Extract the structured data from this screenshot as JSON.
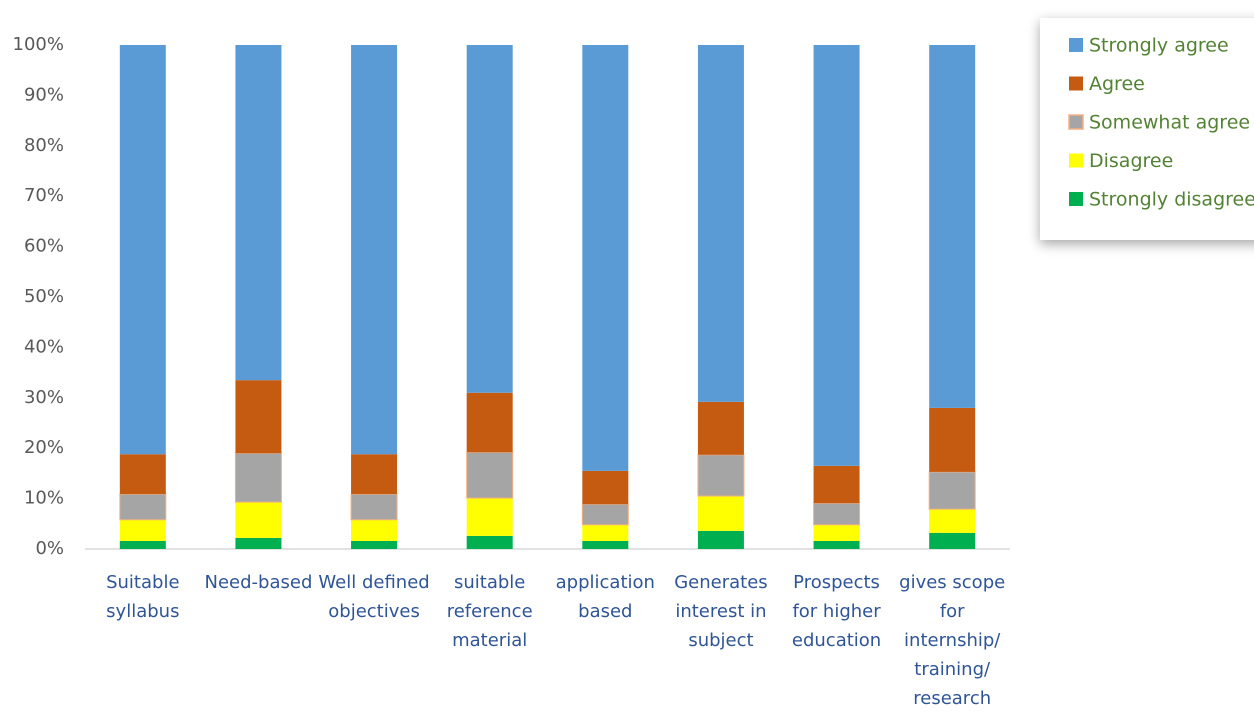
{
  "chart_data": {
    "type": "stacked_bar_100",
    "categories": [
      "Suitable syllabus",
      "Need-based",
      "Well defined objectives",
      "suitable reference material",
      "application based",
      "Generates interest in subject",
      "Prospects for higher education",
      "gives scope for internship/ training/ research"
    ],
    "series": [
      {
        "name": "Strongly agree",
        "color": "#5b9bd5",
        "values": [
          81.2,
          66.5,
          81.2,
          69.0,
          84.5,
          70.8,
          83.5,
          72.0
        ]
      },
      {
        "name": "Agree",
        "color": "#c55a11",
        "values": [
          7.9,
          14.5,
          7.9,
          11.8,
          6.6,
          10.5,
          7.4,
          12.7
        ]
      },
      {
        "name": "Somewhat agree",
        "color": "#a5a5a5",
        "values": [
          5.1,
          9.7,
          5.1,
          9.1,
          4.1,
          8.2,
          4.3,
          7.4
        ]
      },
      {
        "name": "Disagree",
        "color": "#ffff00",
        "values": [
          4.2,
          7.1,
          4.2,
          7.5,
          3.2,
          6.9,
          3.2,
          4.7
        ]
      },
      {
        "name": "Strongly disagree",
        "color": "#00b050",
        "values": [
          1.6,
          2.2,
          1.6,
          2.6,
          1.6,
          3.6,
          1.6,
          3.2
        ]
      }
    ],
    "ylim": [
      0,
      100
    ],
    "yticks": [
      {
        "value": 0,
        "label": "0%"
      },
      {
        "value": 10,
        "label": "10%"
      },
      {
        "value": 20,
        "label": "20%"
      },
      {
        "value": 30,
        "label": "30%"
      },
      {
        "value": 40,
        "label": "40%"
      },
      {
        "value": 50,
        "label": "50%"
      },
      {
        "value": 60,
        "label": "60%"
      },
      {
        "value": 70,
        "label": "70%"
      },
      {
        "value": 80,
        "label": "80%"
      },
      {
        "value": 90,
        "label": "90%"
      },
      {
        "value": 100,
        "label": "100%"
      }
    ],
    "legend": "top-right"
  }
}
